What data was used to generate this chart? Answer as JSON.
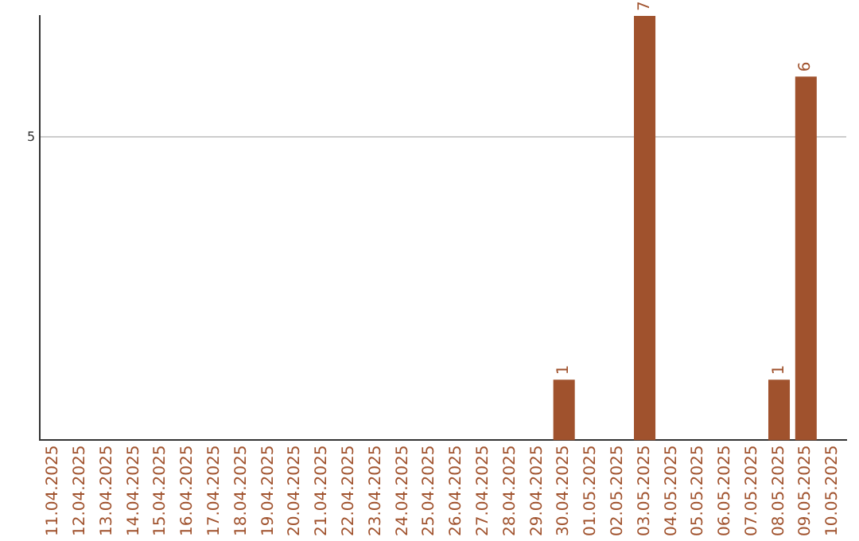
{
  "chart_data": {
    "type": "bar",
    "categories": [
      "11.04.2025",
      "12.04.2025",
      "13.04.2025",
      "14.04.2025",
      "15.04.2025",
      "16.04.2025",
      "17.04.2025",
      "18.04.2025",
      "19.04.2025",
      "20.04.2025",
      "21.04.2025",
      "22.04.2025",
      "23.04.2025",
      "24.04.2025",
      "25.04.2025",
      "26.04.2025",
      "27.04.2025",
      "28.04.2025",
      "29.04.2025",
      "30.04.2025",
      "01.05.2025",
      "02.05.2025",
      "03.05.2025",
      "04.05.2025",
      "05.05.2025",
      "06.05.2025",
      "07.05.2025",
      "08.05.2025",
      "09.05.2025",
      "10.05.2025"
    ],
    "values": [
      null,
      null,
      null,
      null,
      null,
      null,
      null,
      null,
      null,
      null,
      null,
      null,
      null,
      null,
      null,
      null,
      null,
      null,
      null,
      1,
      null,
      null,
      7,
      null,
      null,
      null,
      null,
      1,
      6,
      null
    ],
    "color": "#a0522d",
    "ylim": [
      0,
      7
    ],
    "yticks": [
      5
    ],
    "grid": "y",
    "data_labels": true
  }
}
